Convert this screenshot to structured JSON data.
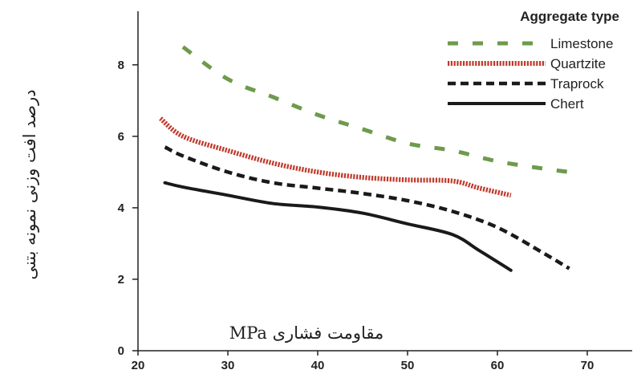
{
  "chart_data": {
    "type": "line",
    "title": "",
    "xlabel": "مقاومت فشاری MPa",
    "ylabel": "درصد افت وزنی نمونه بتنی",
    "xlim": [
      20,
      75
    ],
    "ylim": [
      0,
      9.5
    ],
    "xticks": [
      20,
      30,
      40,
      50,
      60,
      70
    ],
    "yticks": [
      0,
      2,
      4,
      6,
      8
    ],
    "grid": false,
    "legend": {
      "title": "Aggregate type",
      "placement": "top-right"
    },
    "series": [
      {
        "name": "Limestone",
        "color": "#6e9a4c",
        "style": "dashed",
        "x": [
          25,
          30,
          35,
          40,
          45,
          50,
          55,
          60,
          65,
          68
        ],
        "y": [
          8.5,
          7.6,
          7.1,
          6.6,
          6.2,
          5.8,
          5.6,
          5.3,
          5.1,
          5.0
        ]
      },
      {
        "name": "Quartzite",
        "color": "#c0392b",
        "style": "dotted",
        "x": [
          22.5,
          25,
          30,
          35,
          40,
          45,
          50,
          55,
          58,
          61.5
        ],
        "y": [
          6.5,
          6.0,
          5.6,
          5.25,
          5.0,
          4.85,
          4.78,
          4.75,
          4.55,
          4.35
        ]
      },
      {
        "name": "Traprock",
        "color": "#1a1a1a",
        "style": "short-dash",
        "x": [
          23,
          25,
          30,
          35,
          40,
          45,
          50,
          55,
          60,
          65,
          68
        ],
        "y": [
          5.7,
          5.45,
          5.0,
          4.7,
          4.55,
          4.4,
          4.2,
          3.9,
          3.45,
          2.75,
          2.3
        ]
      },
      {
        "name": "Chert",
        "color": "#1a1a1a",
        "style": "solid",
        "x": [
          23,
          25,
          30,
          35,
          40,
          45,
          50,
          55,
          58,
          61.5
        ],
        "y": [
          4.7,
          4.58,
          4.35,
          4.12,
          4.02,
          3.85,
          3.55,
          3.25,
          2.8,
          2.25
        ]
      }
    ]
  }
}
